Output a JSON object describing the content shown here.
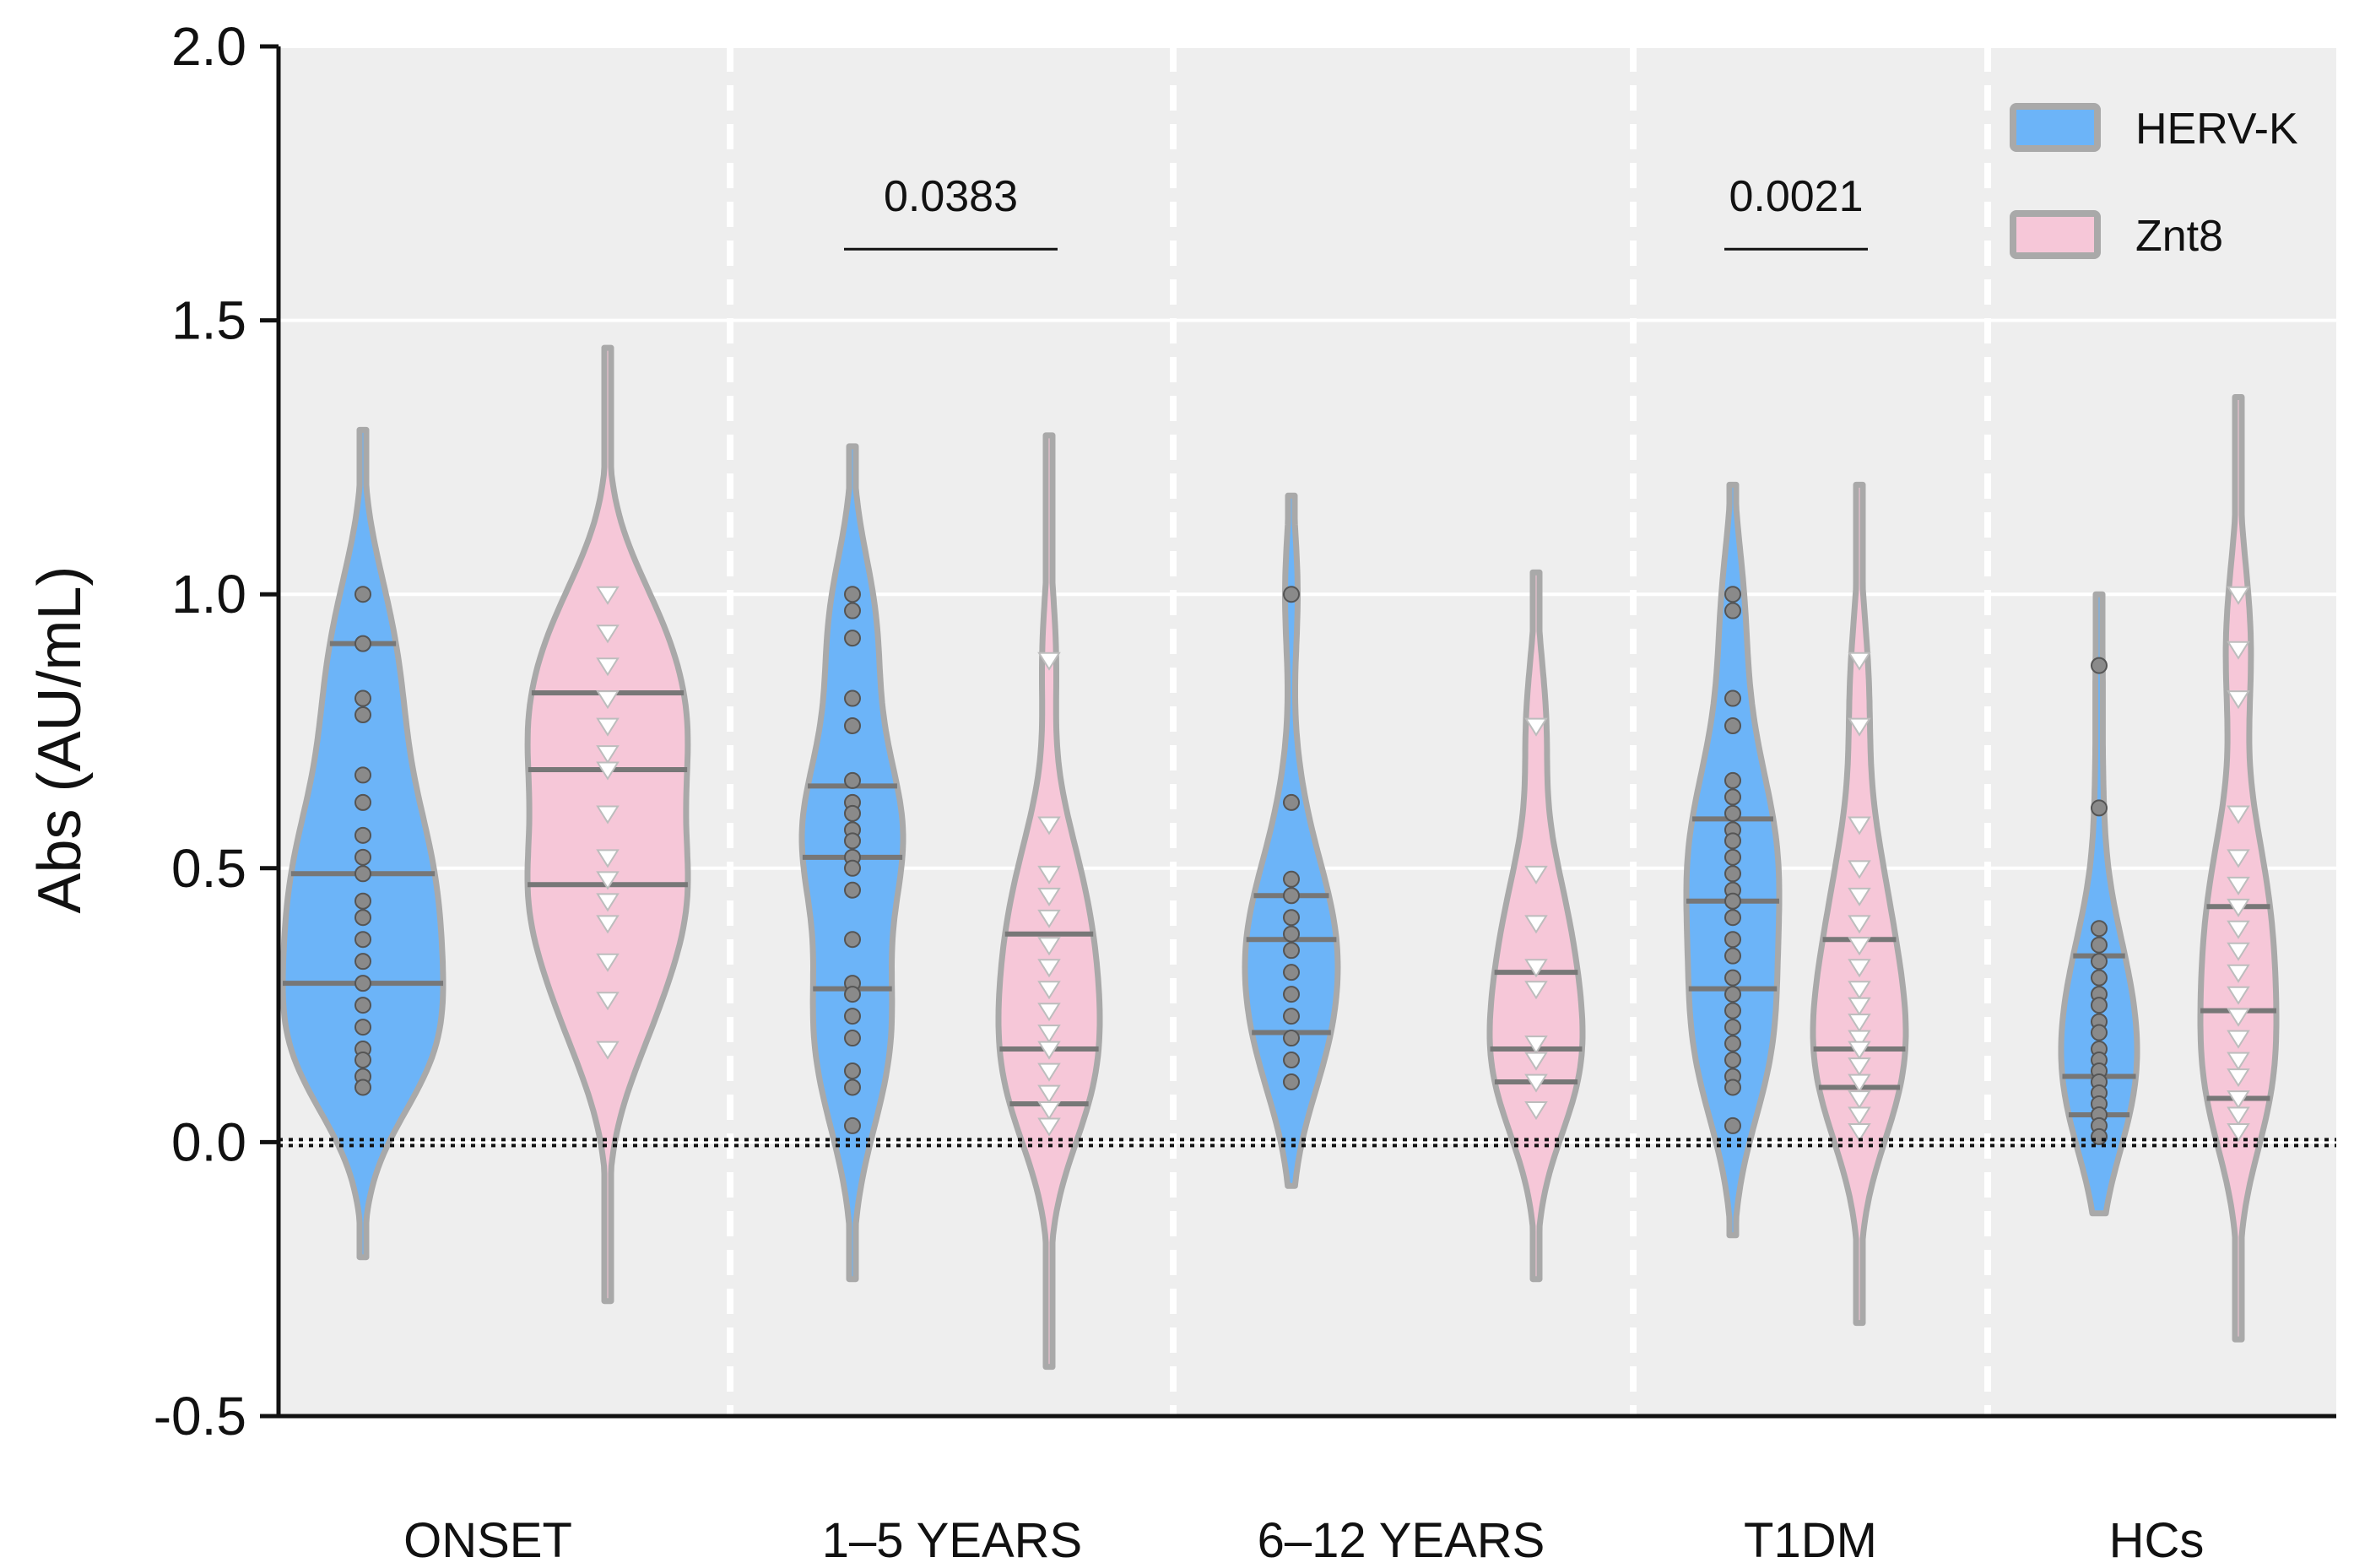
{
  "chart_data": {
    "type": "violin",
    "title": "",
    "xlabel": "",
    "ylabel": "Abs (AU/mL)",
    "ylim": [
      -0.5,
      2.0
    ],
    "yticks": [
      -0.5,
      0.0,
      0.5,
      1.0,
      1.5,
      2.0
    ],
    "ytick_labels": [
      "-0.5",
      "0.0",
      "0.5",
      "1.0",
      "1.5",
      "2.0"
    ],
    "grid": true,
    "legend_position": "top-right",
    "reference_line": 0.0,
    "colors": {
      "HERV-K": "#6cb4f8",
      "Znt8": "#f6c7d8",
      "outline": "#a9a9a9",
      "quartile": "#777777",
      "panel": "#eeeeee"
    },
    "categories": [
      "ONSET",
      "1–5 YEARS",
      "6–12 YEARS",
      "T1DM",
      "HCs"
    ],
    "series": [
      {
        "name": "HERV-K",
        "marker": "circle",
        "groups": [
          {
            "category": "ONSET",
            "range": [
              -0.21,
              1.3
            ],
            "q1": 0.29,
            "median": 0.49,
            "q3": 0.91,
            "points": [
              1.0,
              0.91,
              0.81,
              0.78,
              0.67,
              0.62,
              0.56,
              0.52,
              0.49,
              0.44,
              0.41,
              0.37,
              0.33,
              0.29,
              0.25,
              0.21,
              0.17,
              0.15,
              0.12,
              0.1
            ]
          },
          {
            "category": "1–5 YEARS",
            "range": [
              -0.25,
              1.27
            ],
            "q1": 0.28,
            "median": 0.52,
            "q3": 0.65,
            "points": [
              1.0,
              0.97,
              0.92,
              0.81,
              0.76,
              0.66,
              0.62,
              0.6,
              0.57,
              0.55,
              0.52,
              0.5,
              0.46,
              0.37,
              0.29,
              0.27,
              0.23,
              0.19,
              0.13,
              0.1,
              0.03
            ]
          },
          {
            "category": "6–12 YEARS",
            "range": [
              -0.08,
              1.18
            ],
            "q1": 0.2,
            "median": 0.37,
            "q3": 0.45,
            "points": [
              1.0,
              0.62,
              0.48,
              0.45,
              0.41,
              0.38,
              0.35,
              0.31,
              0.27,
              0.23,
              0.19,
              0.15,
              0.11
            ]
          },
          {
            "category": "T1DM",
            "range": [
              -0.17,
              1.2
            ],
            "q1": 0.28,
            "median": 0.44,
            "q3": 0.59,
            "points": [
              1.0,
              0.97,
              0.81,
              0.76,
              0.66,
              0.63,
              0.6,
              0.57,
              0.55,
              0.52,
              0.49,
              0.46,
              0.44,
              0.41,
              0.37,
              0.34,
              0.3,
              0.27,
              0.24,
              0.21,
              0.18,
              0.15,
              0.12,
              0.1,
              0.03
            ]
          },
          {
            "category": "HCs",
            "range": [
              -0.13,
              1.0
            ],
            "q1": 0.05,
            "median": 0.12,
            "q3": 0.34,
            "points": [
              0.87,
              0.61,
              0.39,
              0.36,
              0.33,
              0.3,
              0.27,
              0.25,
              0.22,
              0.2,
              0.17,
              0.15,
              0.13,
              0.11,
              0.09,
              0.07,
              0.05,
              0.03,
              0.01
            ]
          }
        ]
      },
      {
        "name": "Znt8",
        "marker": "triangle-down",
        "groups": [
          {
            "category": "ONSET",
            "range": [
              -0.29,
              1.45
            ],
            "q1": 0.47,
            "median": 0.68,
            "q3": 0.82,
            "points": [
              1.0,
              0.93,
              0.87,
              0.81,
              0.76,
              0.71,
              0.68,
              0.6,
              0.52,
              0.48,
              0.44,
              0.4,
              0.33,
              0.26,
              0.17
            ]
          },
          {
            "category": "1–5 YEARS",
            "range": [
              -0.41,
              1.29
            ],
            "q1": 0.07,
            "median": 0.17,
            "q3": 0.38,
            "points": [
              0.88,
              0.58,
              0.49,
              0.45,
              0.41,
              0.36,
              0.32,
              0.28,
              0.24,
              0.2,
              0.17,
              0.13,
              0.09,
              0.06,
              0.03
            ]
          },
          {
            "category": "6–12 YEARS",
            "range": [
              -0.25,
              1.04
            ],
            "q1": 0.11,
            "median": 0.17,
            "q3": 0.31,
            "points": [
              0.76,
              0.49,
              0.4,
              0.32,
              0.28,
              0.18,
              0.15,
              0.11,
              0.06
            ]
          },
          {
            "category": "T1DM",
            "range": [
              -0.33,
              1.2
            ],
            "q1": 0.1,
            "median": 0.17,
            "q3": 0.37,
            "points": [
              0.88,
              0.76,
              0.58,
              0.5,
              0.45,
              0.4,
              0.36,
              0.32,
              0.28,
              0.25,
              0.22,
              0.19,
              0.17,
              0.14,
              0.11,
              0.08,
              0.05,
              0.02
            ]
          },
          {
            "category": "HCs",
            "range": [
              -0.36,
              1.36
            ],
            "q1": 0.08,
            "median": 0.24,
            "q3": 0.43,
            "points": [
              1.0,
              0.9,
              0.81,
              0.6,
              0.52,
              0.47,
              0.43,
              0.39,
              0.35,
              0.31,
              0.27,
              0.23,
              0.19,
              0.15,
              0.12,
              0.08,
              0.05,
              0.02
            ]
          }
        ]
      }
    ],
    "annotations": [
      {
        "category": "1–5 YEARS",
        "text": "0.0383",
        "y": 1.63
      },
      {
        "category": "T1DM",
        "text": "0.0021",
        "y": 1.63
      }
    ]
  }
}
